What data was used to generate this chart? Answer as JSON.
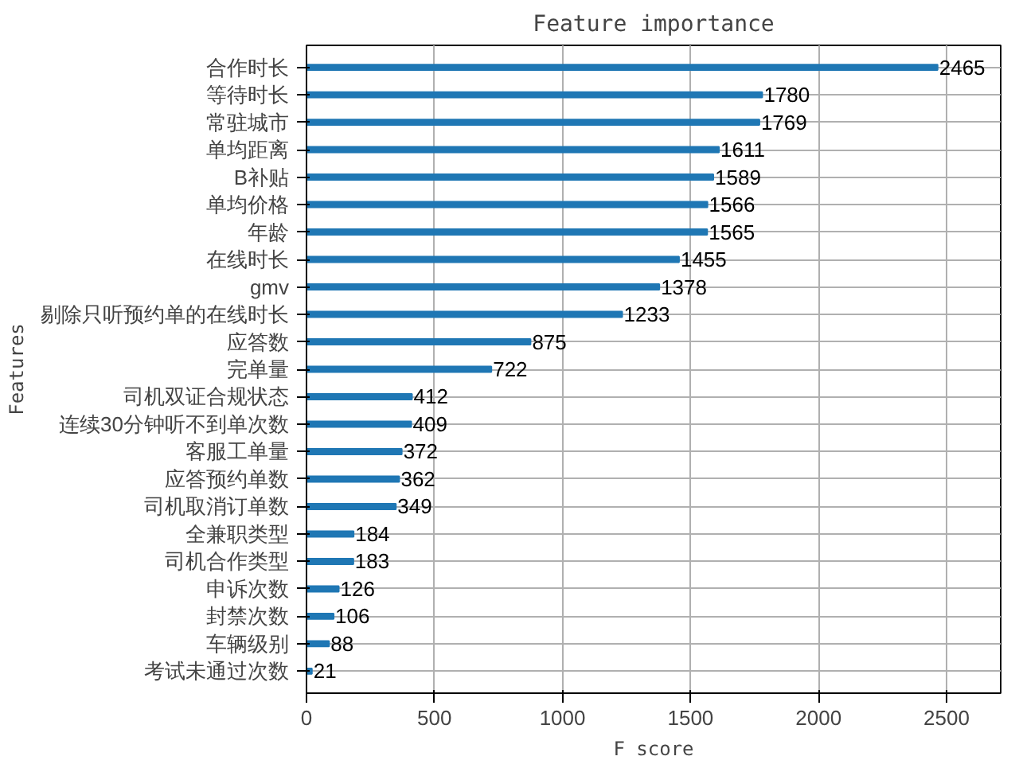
{
  "chart_data": {
    "type": "bar",
    "orientation": "horizontal",
    "title": "Feature importance",
    "xlabel": "F score",
    "ylabel": "Features",
    "categories": [
      "合作时长",
      "等待时长",
      "常驻城市",
      "单均距离",
      "B补贴",
      "单均价格",
      "年龄",
      "在线时长",
      "gmv",
      "剔除只听预约单的在线时长",
      "应答数",
      "完单量",
      "司机双证合规状态",
      "连续30分钟听不到单次数",
      "客服工单量",
      "应答预约单数",
      "司机取消订单数",
      "全兼职类型",
      "司机合作类型",
      "申诉次数",
      "封禁次数",
      "车辆级别",
      "考试未通过次数"
    ],
    "values": [
      2465,
      1780,
      1769,
      1611,
      1589,
      1566,
      1565,
      1455,
      1378,
      1233,
      875,
      722,
      412,
      409,
      372,
      362,
      349,
      184,
      183,
      126,
      106,
      88,
      21
    ],
    "color": "#1f77b4",
    "xlim": [
      0,
      2711.5
    ],
    "xticks": [
      0,
      500,
      1000,
      1500,
      2000,
      2500
    ],
    "grid": true,
    "data_labels": true
  }
}
